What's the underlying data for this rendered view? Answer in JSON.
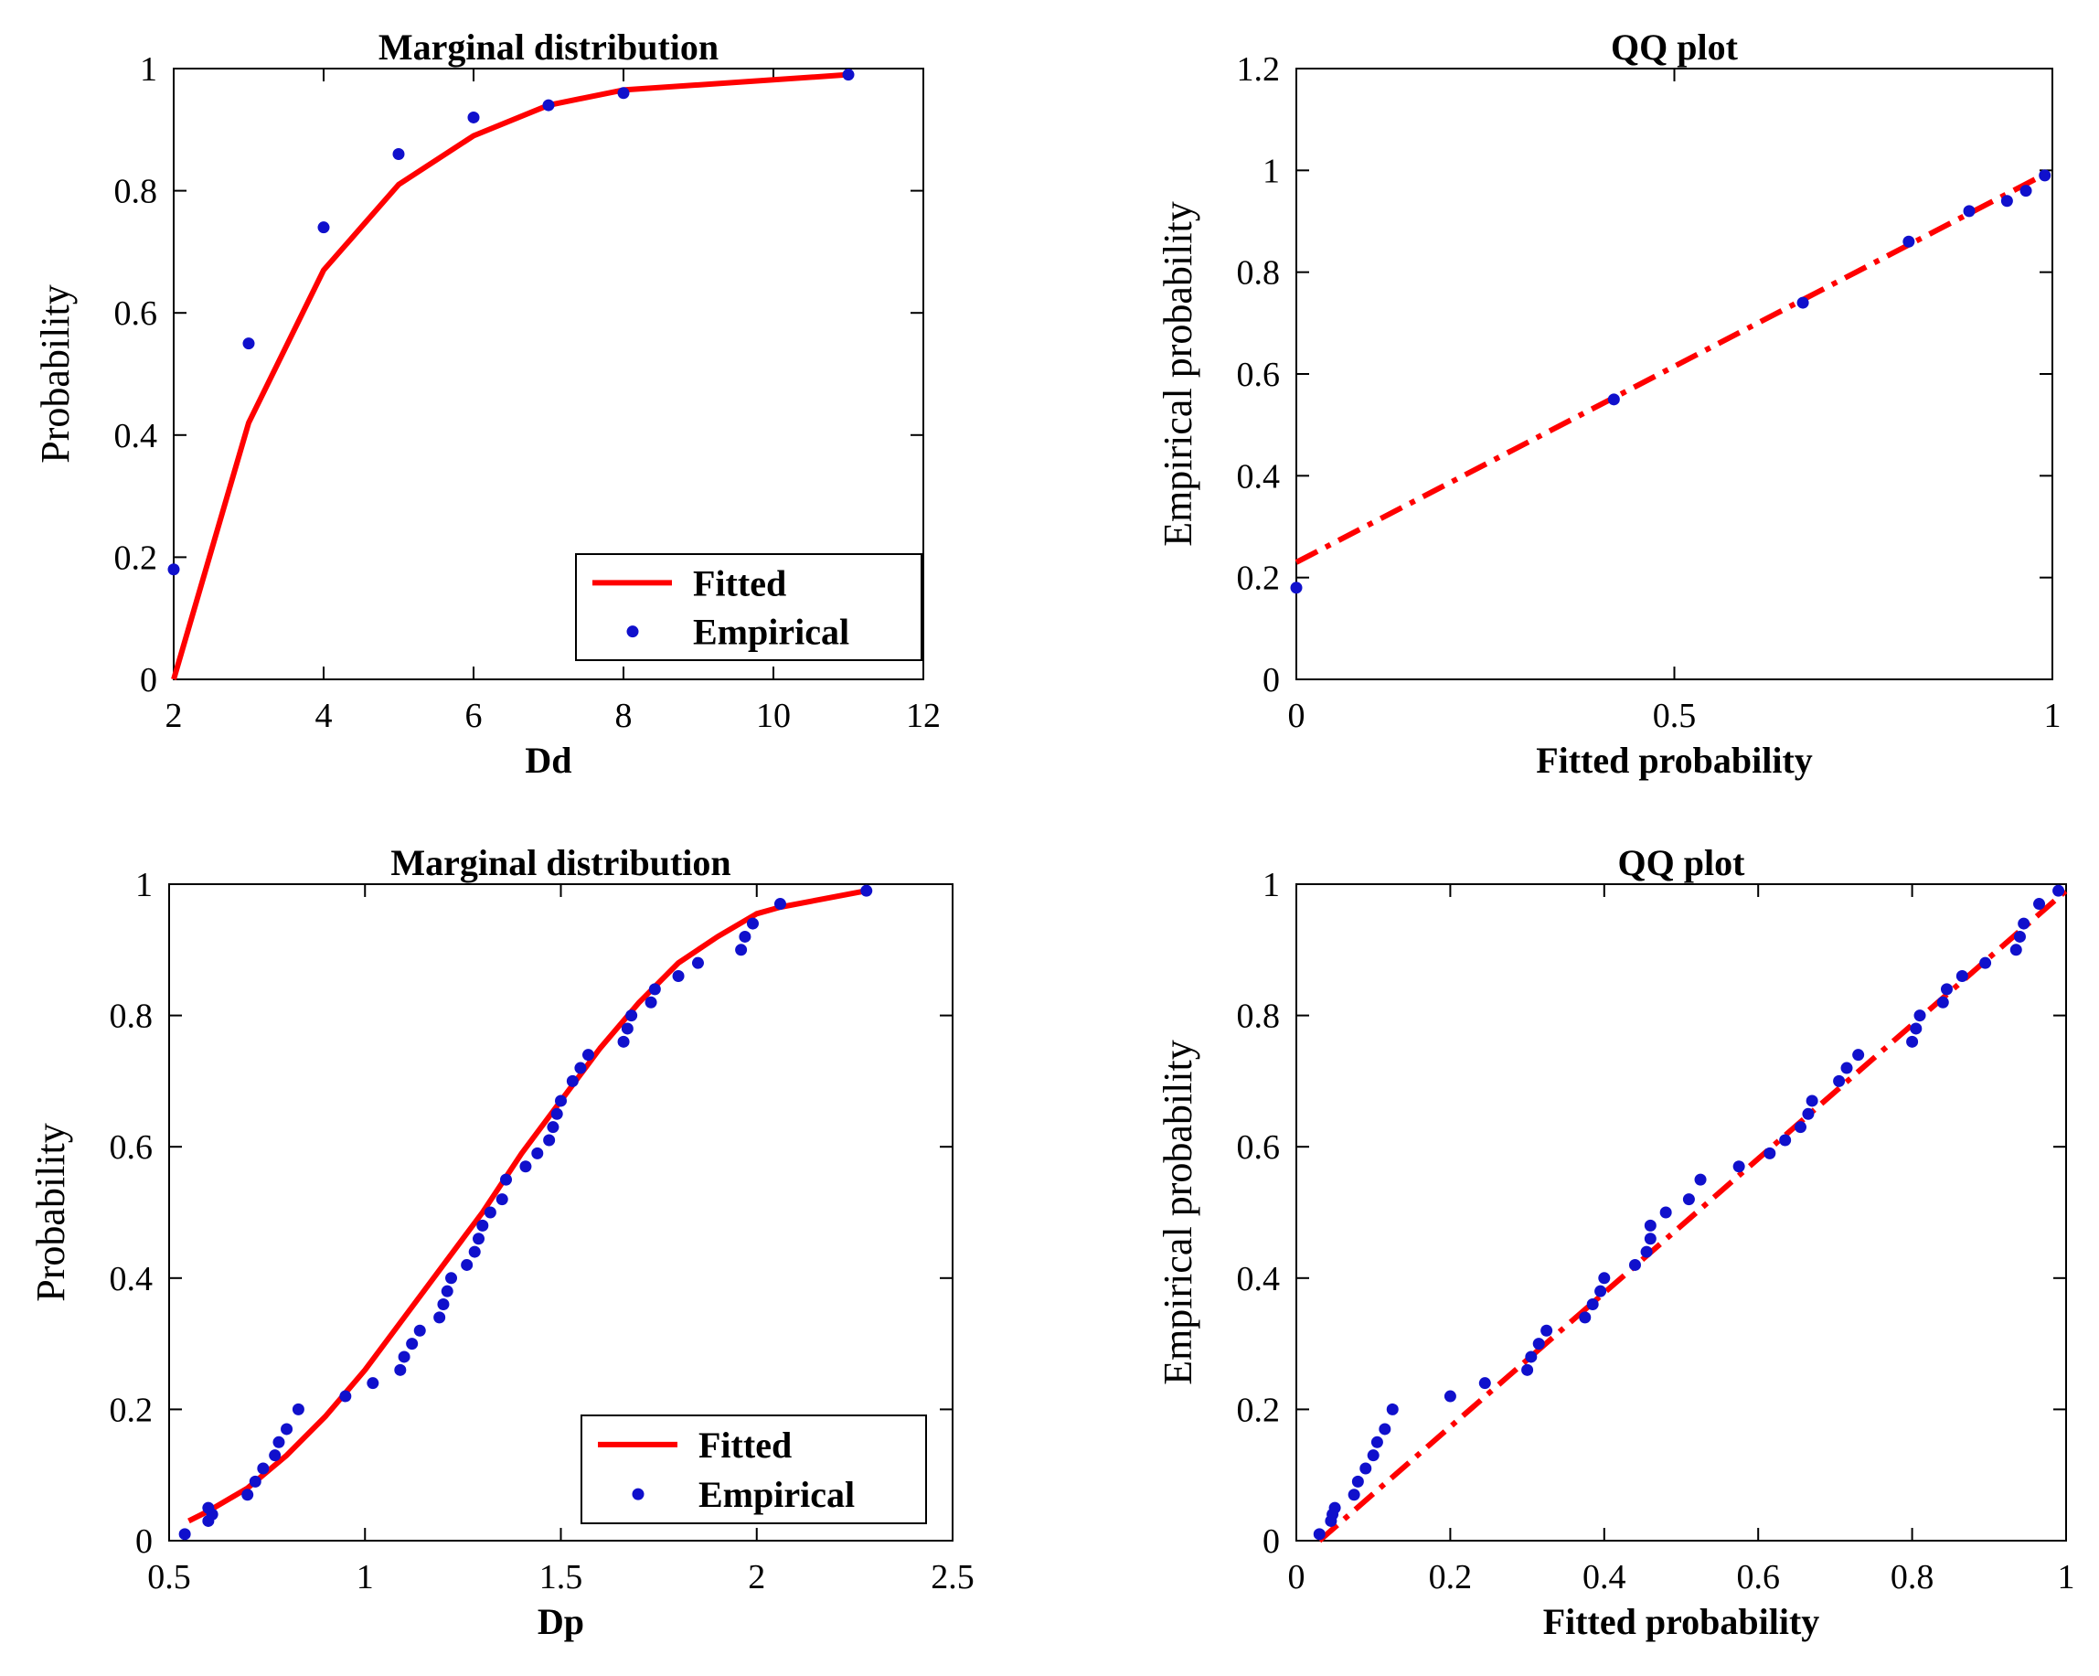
{
  "chart_data": [
    {
      "type": "line",
      "title": "Marginal distribution",
      "xlabel": "Dd",
      "ylabel": "Probability",
      "xlim": [
        2,
        12
      ],
      "ylim": [
        0,
        1
      ],
      "xticks": [
        2,
        4,
        6,
        8,
        10,
        12
      ],
      "xtick_labels": [
        "2",
        "4",
        "6",
        "8",
        "10",
        "12"
      ],
      "yticks": [
        0,
        0.2,
        0.4,
        0.6,
        0.8,
        1
      ],
      "ytick_labels": [
        "0",
        "0.2",
        "0.4",
        "0.6",
        "0.8",
        "1"
      ],
      "legend": [
        "Fitted",
        "Empirical"
      ],
      "legend_position": "bottom-right",
      "series": [
        {
          "name": "Fitted",
          "style": "solid-line",
          "color": "#ff0000",
          "x": [
            2,
            3,
            4,
            5,
            6,
            7,
            8,
            11
          ],
          "y": [
            0.0,
            0.42,
            0.67,
            0.81,
            0.89,
            0.94,
            0.965,
            0.99
          ]
        },
        {
          "name": "Empirical",
          "style": "dots",
          "color": "#1010cc",
          "x": [
            2,
            3,
            4,
            5,
            6,
            7,
            8,
            11
          ],
          "y": [
            0.18,
            0.55,
            0.74,
            0.86,
            0.92,
            0.94,
            0.96,
            0.99
          ]
        }
      ]
    },
    {
      "type": "scatter",
      "title": "QQ plot",
      "xlabel": "Fitted probability",
      "ylabel": "Empirical probability",
      "xlim": [
        0,
        1
      ],
      "ylim": [
        0,
        1.2
      ],
      "xticks": [
        0,
        0.5,
        1
      ],
      "xtick_labels": [
        "0",
        "0.5",
        "1"
      ],
      "yticks": [
        0,
        0.2,
        0.4,
        0.6,
        0.8,
        1,
        1.2
      ],
      "ytick_labels": [
        "0",
        "0.2",
        "0.4",
        "0.6",
        "0.8",
        "1",
        "1.2"
      ],
      "series": [
        {
          "name": "Reference line",
          "style": "dash-dot-line",
          "color": "#ff0000",
          "x": [
            0,
            1
          ],
          "y": [
            0.23,
            1.0
          ]
        },
        {
          "name": "Empirical",
          "style": "dots",
          "color": "#1010cc",
          "x": [
            0.0,
            0.42,
            0.67,
            0.81,
            0.89,
            0.94,
            0.965,
            0.99
          ],
          "y": [
            0.18,
            0.55,
            0.74,
            0.86,
            0.92,
            0.94,
            0.96,
            0.99
          ]
        }
      ]
    },
    {
      "type": "line",
      "title": "Marginal distribution",
      "xlabel": "Dp",
      "ylabel": "Probability",
      "xlim": [
        0.5,
        2.5
      ],
      "ylim": [
        0,
        1
      ],
      "xticks": [
        0.5,
        1,
        1.5,
        2,
        2.5
      ],
      "xtick_labels": [
        "0.5",
        "1",
        "1.5",
        "2",
        "2.5"
      ],
      "yticks": [
        0,
        0.2,
        0.4,
        0.6,
        0.8,
        1
      ],
      "ytick_labels": [
        "0",
        "0.2",
        "0.4",
        "0.6",
        "0.8",
        "1"
      ],
      "legend": [
        "Fitted",
        "Empirical"
      ],
      "legend_position": "bottom-right",
      "series": [
        {
          "name": "Fitted",
          "style": "solid-line",
          "color": "#ff0000",
          "x": [
            0.55,
            0.6,
            0.7,
            0.8,
            0.9,
            1.0,
            1.1,
            1.2,
            1.3,
            1.4,
            1.5,
            1.6,
            1.7,
            1.8,
            1.9,
            2.0,
            2.06,
            2.28
          ],
          "y": [
            0.03,
            0.045,
            0.08,
            0.13,
            0.19,
            0.26,
            0.34,
            0.42,
            0.5,
            0.59,
            0.67,
            0.75,
            0.82,
            0.88,
            0.92,
            0.955,
            0.965,
            0.99
          ]
        },
        {
          "name": "Empirical",
          "style": "dots",
          "color": "#1010cc",
          "x": [
            0.54,
            0.6,
            0.61,
            0.6,
            0.7,
            0.72,
            0.74,
            0.77,
            0.78,
            0.8,
            0.83,
            0.95,
            1.02,
            1.09,
            1.1,
            1.12,
            1.14,
            1.19,
            1.2,
            1.21,
            1.22,
            1.26,
            1.28,
            1.29,
            1.3,
            1.32,
            1.35,
            1.36,
            1.41,
            1.44,
            1.47,
            1.48,
            1.49,
            1.5,
            1.53,
            1.55,
            1.57,
            1.66,
            1.67,
            1.68,
            1.73,
            1.74,
            1.8,
            1.85,
            1.96,
            1.97,
            1.99,
            2.06,
            2.28
          ],
          "y": [
            0.01,
            0.03,
            0.04,
            0.05,
            0.07,
            0.09,
            0.11,
            0.13,
            0.15,
            0.17,
            0.2,
            0.22,
            0.24,
            0.26,
            0.28,
            0.3,
            0.32,
            0.34,
            0.36,
            0.38,
            0.4,
            0.42,
            0.44,
            0.46,
            0.48,
            0.5,
            0.52,
            0.55,
            0.57,
            0.59,
            0.61,
            0.63,
            0.65,
            0.67,
            0.7,
            0.72,
            0.74,
            0.76,
            0.78,
            0.8,
            0.82,
            0.84,
            0.86,
            0.88,
            0.9,
            0.92,
            0.94,
            0.97,
            0.99
          ]
        }
      ]
    },
    {
      "type": "scatter",
      "title": "QQ plot",
      "xlabel": "Fitted probability",
      "ylabel": "Empirical probability",
      "xlim": [
        0,
        1
      ],
      "ylim": [
        0,
        1
      ],
      "xticks": [
        0,
        0.2,
        0.4,
        0.6,
        0.8,
        1
      ],
      "xtick_labels": [
        "0",
        "0.2",
        "0.4",
        "0.6",
        "0.8",
        "1"
      ],
      "yticks": [
        0,
        0.2,
        0.4,
        0.6,
        0.8,
        1
      ],
      "ytick_labels": [
        "0",
        "0.2",
        "0.4",
        "0.6",
        "0.8",
        "1"
      ],
      "series": [
        {
          "name": "Reference line",
          "style": "dash-dot-line",
          "color": "#ff0000",
          "x": [
            0.03,
            1.0
          ],
          "y": [
            0.0,
            0.99
          ]
        },
        {
          "name": "Empirical",
          "style": "dots",
          "color": "#1010cc",
          "x": [
            0.03,
            0.045,
            0.047,
            0.05,
            0.075,
            0.08,
            0.09,
            0.1,
            0.105,
            0.115,
            0.125,
            0.2,
            0.245,
            0.3,
            0.305,
            0.315,
            0.325,
            0.375,
            0.385,
            0.395,
            0.4,
            0.44,
            0.455,
            0.46,
            0.46,
            0.48,
            0.51,
            0.525,
            0.575,
            0.615,
            0.635,
            0.655,
            0.665,
            0.67,
            0.705,
            0.715,
            0.73,
            0.8,
            0.805,
            0.81,
            0.84,
            0.845,
            0.865,
            0.895,
            0.935,
            0.94,
            0.945,
            0.965,
            0.99
          ],
          "y": [
            0.01,
            0.03,
            0.04,
            0.05,
            0.07,
            0.09,
            0.11,
            0.13,
            0.15,
            0.17,
            0.2,
            0.22,
            0.24,
            0.26,
            0.28,
            0.3,
            0.32,
            0.34,
            0.36,
            0.38,
            0.4,
            0.42,
            0.44,
            0.46,
            0.48,
            0.5,
            0.52,
            0.55,
            0.57,
            0.59,
            0.61,
            0.63,
            0.65,
            0.67,
            0.7,
            0.72,
            0.74,
            0.76,
            0.78,
            0.8,
            0.82,
            0.84,
            0.86,
            0.88,
            0.9,
            0.92,
            0.94,
            0.97,
            0.99
          ]
        }
      ]
    }
  ]
}
